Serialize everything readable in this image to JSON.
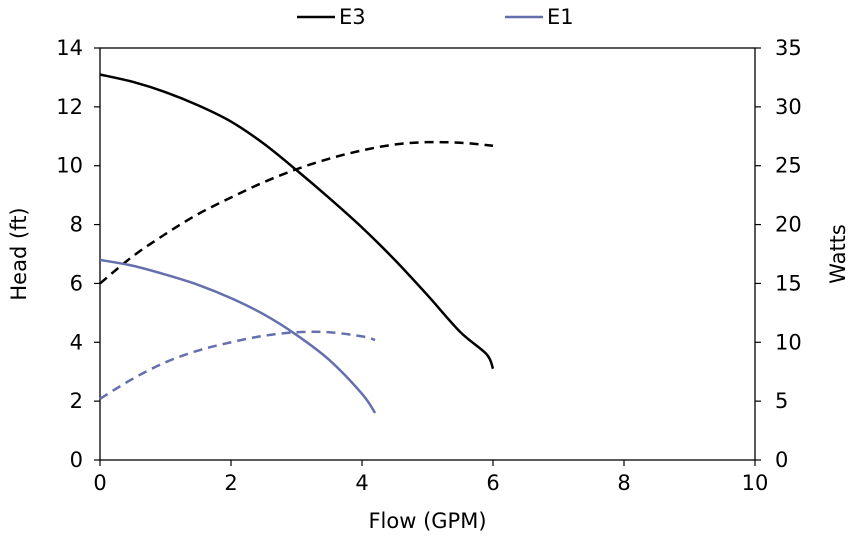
{
  "chart_data": {
    "type": "line",
    "title": "",
    "xlabel": "Flow (GPM)",
    "ylabel": "Head (ft)",
    "y2label": "Watts",
    "xlim": [
      0,
      10
    ],
    "ylim": [
      0,
      14
    ],
    "y2lim": [
      0,
      35
    ],
    "x_ticks": [
      0,
      2,
      4,
      6,
      8,
      10
    ],
    "y_ticks": [
      0,
      2,
      4,
      6,
      8,
      10,
      12,
      14
    ],
    "y2_ticks": [
      0,
      5,
      10,
      15,
      20,
      25,
      30,
      35
    ],
    "grid": false,
    "legend": "top-center",
    "legend_entries": [
      {
        "name": "E3",
        "color": "#000000"
      },
      {
        "name": "E1",
        "color": "#6470ad"
      }
    ],
    "series": [
      {
        "name": "E3",
        "quantity": "head",
        "axis": "left",
        "style": "solid",
        "color": "#000000",
        "points": [
          [
            0,
            13.1
          ],
          [
            0.5,
            12.85
          ],
          [
            1,
            12.5
          ],
          [
            1.5,
            12.05
          ],
          [
            2,
            11.5
          ],
          [
            2.5,
            10.75
          ],
          [
            3,
            9.85
          ],
          [
            3.5,
            8.9
          ],
          [
            4,
            7.9
          ],
          [
            4.5,
            6.8
          ],
          [
            5,
            5.6
          ],
          [
            5.5,
            4.35
          ],
          [
            5.9,
            3.6
          ],
          [
            6,
            3.1
          ]
        ]
      },
      {
        "name": "E3",
        "quantity": "power",
        "axis": "right",
        "style": "dashed",
        "color": "#000000",
        "points": [
          [
            0,
            15
          ],
          [
            0.5,
            17.3
          ],
          [
            1,
            19.2
          ],
          [
            1.5,
            20.9
          ],
          [
            2,
            22.3
          ],
          [
            2.5,
            23.6
          ],
          [
            3,
            24.7
          ],
          [
            3.5,
            25.6
          ],
          [
            4,
            26.3
          ],
          [
            4.5,
            26.8
          ],
          [
            5,
            27.0
          ],
          [
            5.5,
            26.95
          ],
          [
            6,
            26.7
          ]
        ]
      },
      {
        "name": "E1",
        "quantity": "head",
        "axis": "left",
        "style": "solid",
        "color": "#6470ad",
        "points": [
          [
            0,
            6.8
          ],
          [
            0.5,
            6.6
          ],
          [
            1,
            6.3
          ],
          [
            1.5,
            5.95
          ],
          [
            2,
            5.5
          ],
          [
            2.5,
            4.95
          ],
          [
            3,
            4.25
          ],
          [
            3.5,
            3.4
          ],
          [
            4,
            2.25
          ],
          [
            4.2,
            1.6
          ]
        ]
      },
      {
        "name": "E1",
        "quantity": "power",
        "axis": "right",
        "style": "dashed",
        "color": "#6470ad",
        "points": [
          [
            0,
            5.2
          ],
          [
            0.5,
            6.9
          ],
          [
            1,
            8.3
          ],
          [
            1.5,
            9.3
          ],
          [
            2,
            10.0
          ],
          [
            2.5,
            10.55
          ],
          [
            3,
            10.85
          ],
          [
            3.5,
            10.85
          ],
          [
            4,
            10.5
          ],
          [
            4.2,
            10.2
          ]
        ]
      }
    ]
  }
}
